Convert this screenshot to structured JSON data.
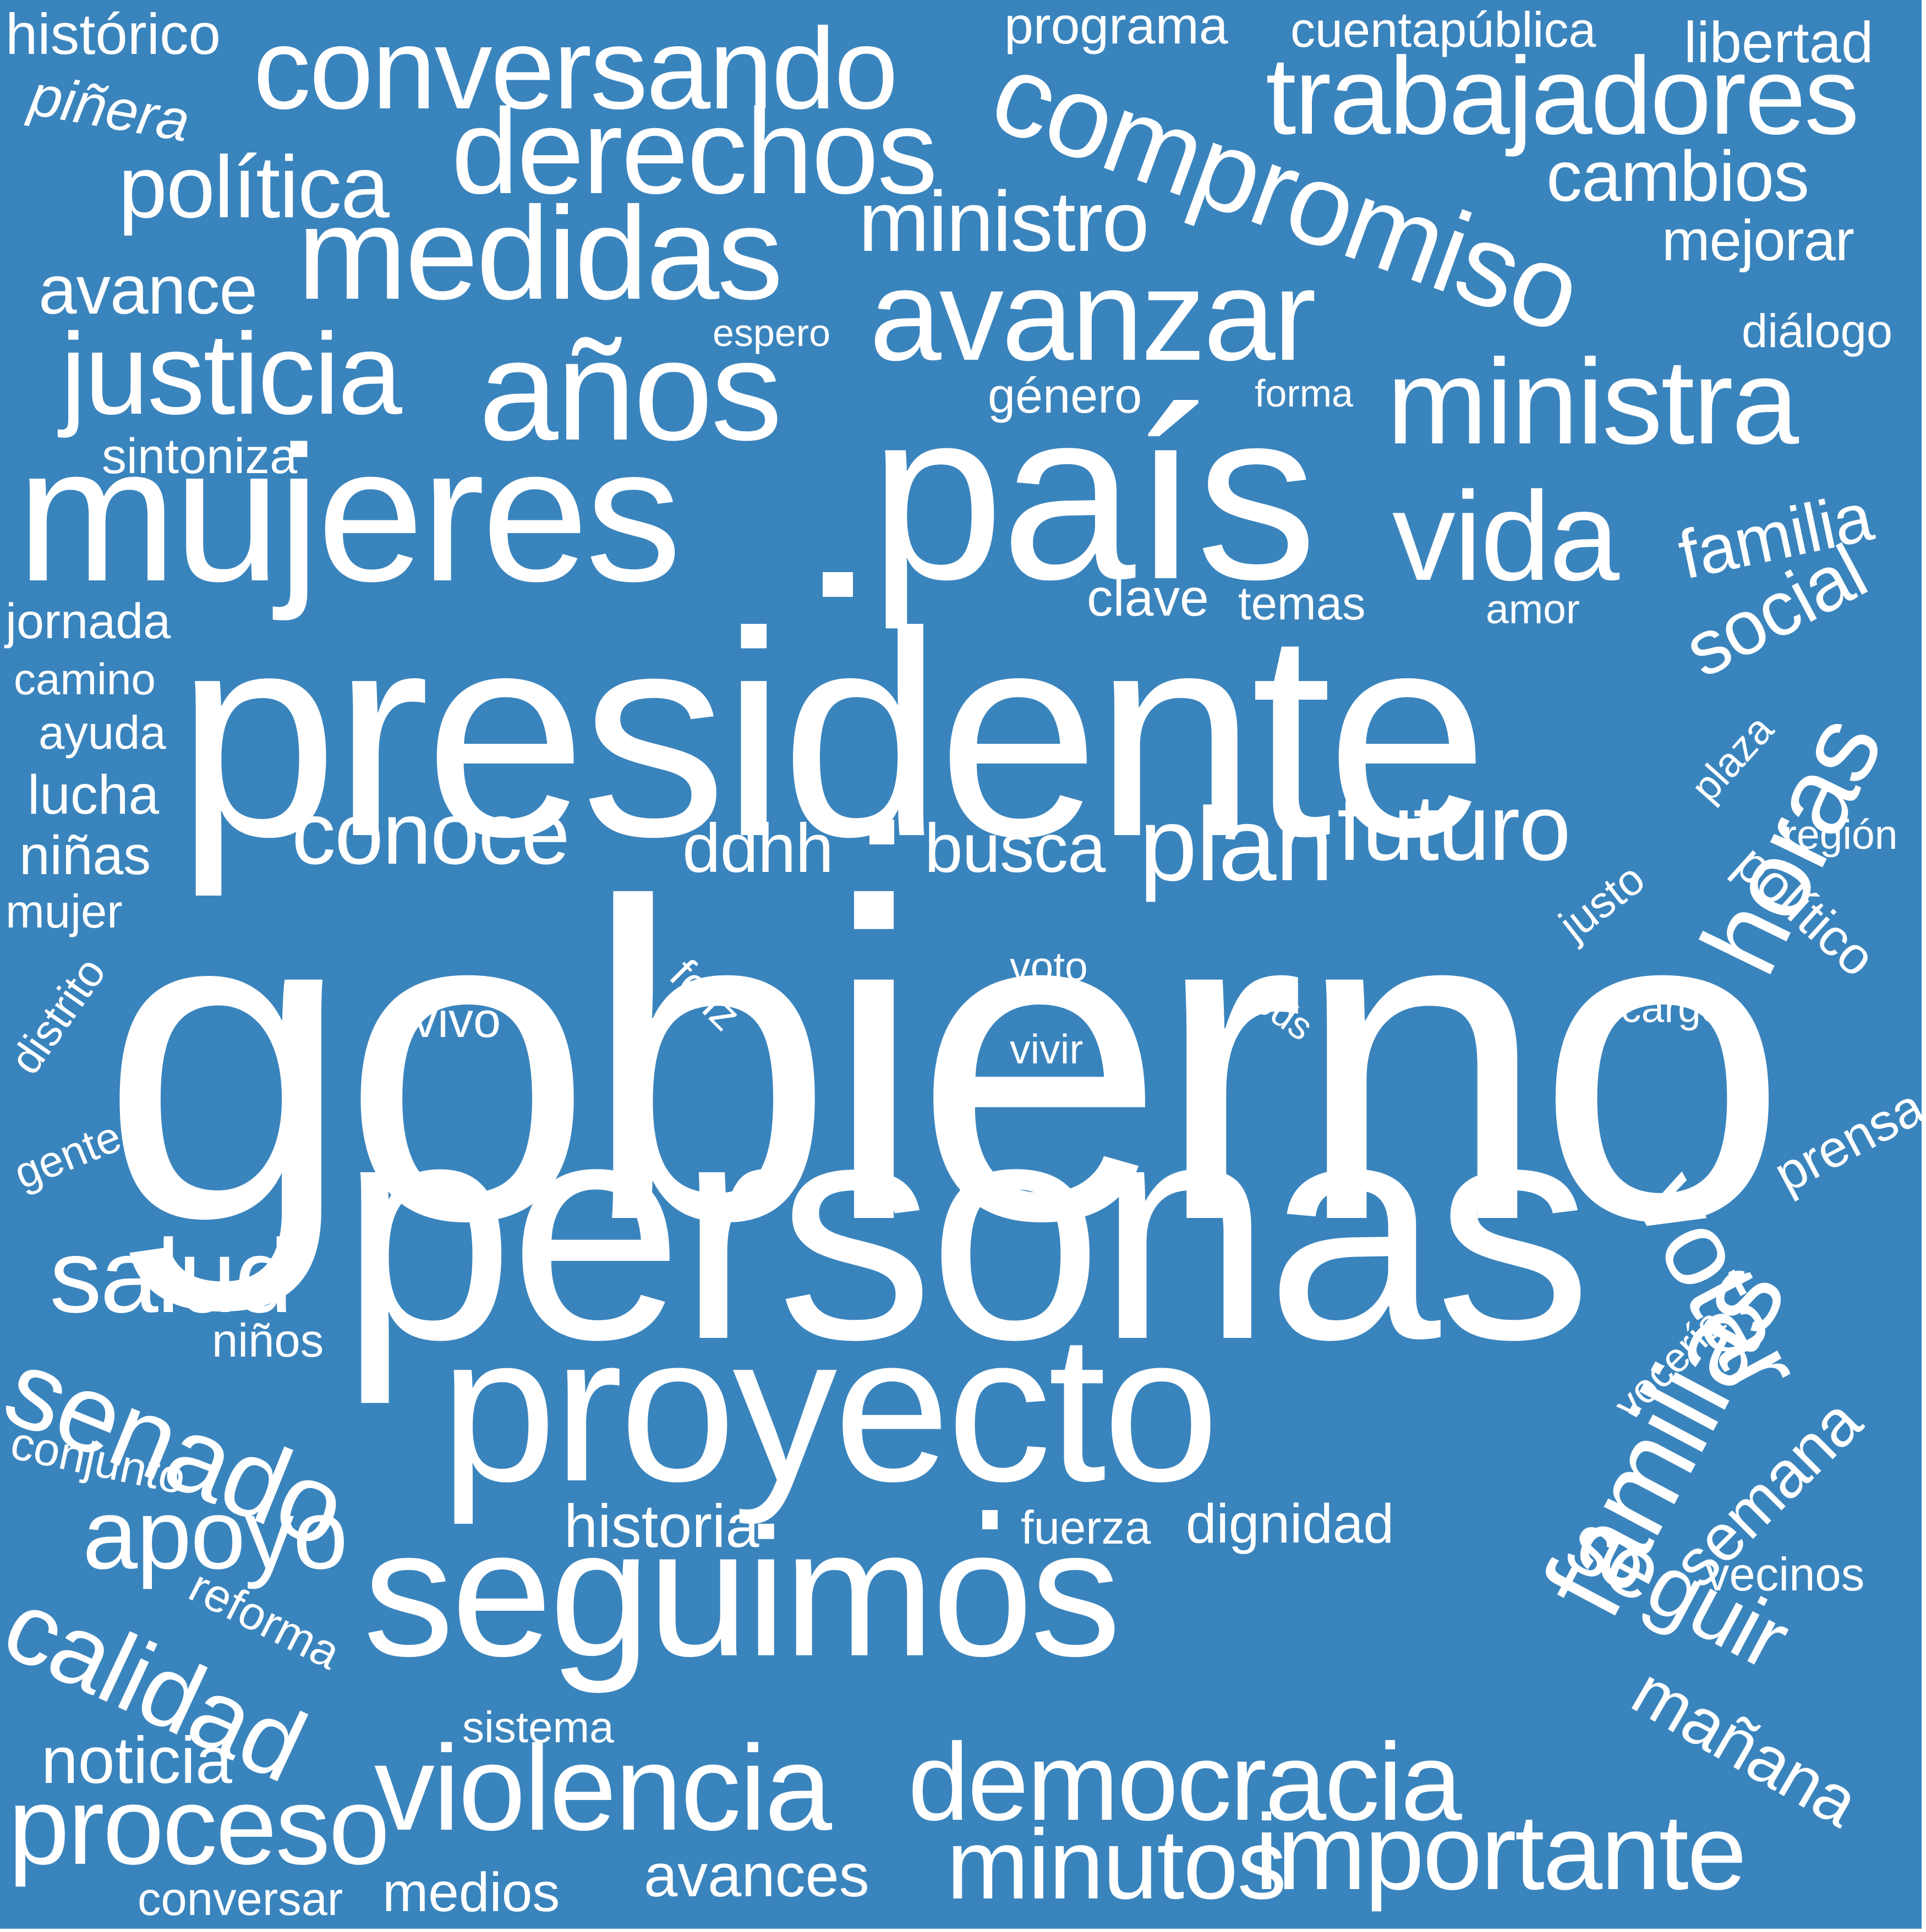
{
  "colors": {
    "background": "#3a84bd",
    "text": "#ffffff"
  },
  "words": [
    "gobierno",
    "personas",
    "presidente",
    "país",
    "mujeres",
    "proyecto",
    "seguimos",
    "años",
    "medidas",
    "derechos",
    "conversando",
    "compromiso",
    "trabajadores",
    "avanzar",
    "ministra",
    "justicia",
    "política",
    "vida",
    "violencia",
    "democracia",
    "importante",
    "minutos",
    "proceso",
    "familias",
    "horas",
    "votar",
    "senado",
    "apoyo",
    "calidad",
    "salud",
    "conoce",
    "plan",
    "futuro",
    "busca",
    "ddhh",
    "ministro",
    "social",
    "familia",
    "seguir",
    "mañana",
    "semana",
    "cambios",
    "mejorar",
    "avance",
    "histórico",
    "piñera",
    "programa",
    "cuentapública",
    "libertad",
    "diálogo",
    "espero",
    "género",
    "forma",
    "sintoniza",
    "jornada",
    "camino",
    "ayuda",
    "lucha",
    "niñas",
    "mujer",
    "distrito",
    "gente",
    "clave",
    "temas",
    "amor",
    "plaza",
    "región",
    "justo",
    "político",
    "voto",
    "vivo",
    "feliz",
    "vivir",
    "tods",
    "cargo",
    "prensa",
    "vocería",
    "niños",
    "conjunto",
    "historia",
    "fuerza",
    "dignidad",
    "reforma",
    "vecinos",
    "sistema",
    "noticia",
    "avances",
    "medios",
    "conversar"
  ]
}
